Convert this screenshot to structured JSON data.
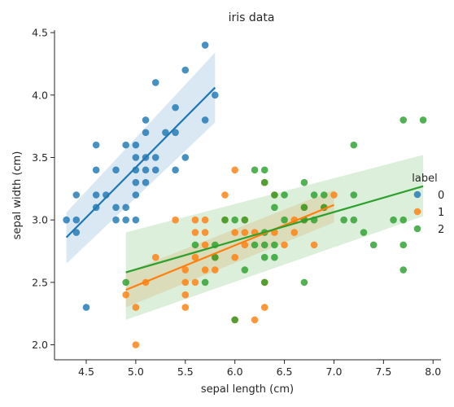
{
  "chart_data": {
    "type": "scatter",
    "title": "iris data",
    "xlabel": "sepal length (cm)",
    "ylabel": "sepal width (cm)",
    "xlim": [
      4.18,
      8.08
    ],
    "ylim": [
      1.88,
      4.52
    ],
    "xticks": [
      4.5,
      5.0,
      5.5,
      6.0,
      6.5,
      7.0,
      7.5,
      8.0
    ],
    "yticks": [
      2.0,
      2.5,
      3.0,
      3.5,
      4.0,
      4.5
    ],
    "xtick_labels": [
      "4.5",
      "5.0",
      "5.5",
      "6.0",
      "6.5",
      "7.0",
      "7.5",
      "8.0"
    ],
    "ytick_labels": [
      "2.0",
      "2.5",
      "3.0",
      "3.5",
      "4.0",
      "4.5"
    ],
    "grid": false,
    "legend": {
      "title": "label",
      "placement": "right"
    },
    "series": [
      {
        "name": "0",
        "color": "#1f77b4",
        "points": [
          [
            4.3,
            3.0
          ],
          [
            4.4,
            2.9
          ],
          [
            4.4,
            3.0
          ],
          [
            4.4,
            3.2
          ],
          [
            4.5,
            2.3
          ],
          [
            4.6,
            3.1
          ],
          [
            4.6,
            3.4
          ],
          [
            4.6,
            3.6
          ],
          [
            4.6,
            3.2
          ],
          [
            4.7,
            3.2
          ],
          [
            4.8,
            3.4
          ],
          [
            4.8,
            3.0
          ],
          [
            4.8,
            3.1
          ],
          [
            4.9,
            3.0
          ],
          [
            4.9,
            3.1
          ],
          [
            4.9,
            3.6
          ],
          [
            5.0,
            3.6
          ],
          [
            5.0,
            3.4
          ],
          [
            5.0,
            3.0
          ],
          [
            5.0,
            3.3
          ],
          [
            5.0,
            3.5
          ],
          [
            5.0,
            3.2
          ],
          [
            5.1,
            3.5
          ],
          [
            5.1,
            3.8
          ],
          [
            5.1,
            3.7
          ],
          [
            5.1,
            3.3
          ],
          [
            5.1,
            3.4
          ],
          [
            5.2,
            3.5
          ],
          [
            5.2,
            3.4
          ],
          [
            5.2,
            4.1
          ],
          [
            5.3,
            3.7
          ],
          [
            5.4,
            3.9
          ],
          [
            5.4,
            3.7
          ],
          [
            5.4,
            3.4
          ],
          [
            5.5,
            4.2
          ],
          [
            5.5,
            3.5
          ],
          [
            5.7,
            4.4
          ],
          [
            5.7,
            3.8
          ],
          [
            5.8,
            4.0
          ]
        ],
        "fit": {
          "x_range": [
            4.3,
            5.8
          ],
          "y_values": [
            2.86,
            4.06
          ],
          "ci_lower": [
            2.65,
            3.78
          ],
          "ci_upper": [
            3.06,
            4.34
          ]
        }
      },
      {
        "name": "1",
        "color": "#ff7f0e",
        "points": [
          [
            4.9,
            2.4
          ],
          [
            5.0,
            2.0
          ],
          [
            5.0,
            2.3
          ],
          [
            5.1,
            2.5
          ],
          [
            5.2,
            2.7
          ],
          [
            5.4,
            3.0
          ],
          [
            5.5,
            2.3
          ],
          [
            5.5,
            2.4
          ],
          [
            5.5,
            2.5
          ],
          [
            5.5,
            2.6
          ],
          [
            5.6,
            2.9
          ],
          [
            5.6,
            3.0
          ],
          [
            5.6,
            2.5
          ],
          [
            5.6,
            2.7
          ],
          [
            5.7,
            2.8
          ],
          [
            5.7,
            3.0
          ],
          [
            5.7,
            2.9
          ],
          [
            5.7,
            2.6
          ],
          [
            5.8,
            2.7
          ],
          [
            5.8,
            2.6
          ],
          [
            5.9,
            3.0
          ],
          [
            5.9,
            3.2
          ],
          [
            6.0,
            2.2
          ],
          [
            6.0,
            2.9
          ],
          [
            6.0,
            2.7
          ],
          [
            6.0,
            3.4
          ],
          [
            6.1,
            2.9
          ],
          [
            6.1,
            2.8
          ],
          [
            6.1,
            3.0
          ],
          [
            6.2,
            2.2
          ],
          [
            6.2,
            2.9
          ],
          [
            6.3,
            3.3
          ],
          [
            6.3,
            2.5
          ],
          [
            6.3,
            2.3
          ],
          [
            6.4,
            3.2
          ],
          [
            6.4,
            2.9
          ],
          [
            6.5,
            2.8
          ],
          [
            6.6,
            2.9
          ],
          [
            6.6,
            3.0
          ],
          [
            6.7,
            3.1
          ],
          [
            6.7,
            3.0
          ],
          [
            6.8,
            2.8
          ],
          [
            6.9,
            3.1
          ],
          [
            7.0,
            3.2
          ]
        ],
        "fit": {
          "x_range": [
            4.9,
            7.0
          ],
          "y_values": [
            2.44,
            3.12
          ],
          "ci_lower": [
            2.3,
            2.98
          ],
          "ci_upper": [
            2.58,
            3.24
          ]
        }
      },
      {
        "name": "2",
        "color": "#2ca02c",
        "points": [
          [
            4.9,
            2.5
          ],
          [
            5.6,
            2.8
          ],
          [
            5.7,
            2.5
          ],
          [
            5.8,
            2.7
          ],
          [
            5.8,
            2.8
          ],
          [
            5.9,
            3.0
          ],
          [
            6.0,
            2.2
          ],
          [
            6.0,
            3.0
          ],
          [
            6.1,
            2.6
          ],
          [
            6.1,
            3.0
          ],
          [
            6.2,
            2.8
          ],
          [
            6.2,
            3.4
          ],
          [
            6.3,
            3.3
          ],
          [
            6.3,
            2.7
          ],
          [
            6.3,
            2.9
          ],
          [
            6.3,
            2.5
          ],
          [
            6.3,
            2.8
          ],
          [
            6.3,
            3.4
          ],
          [
            6.4,
            2.7
          ],
          [
            6.4,
            3.2
          ],
          [
            6.4,
            2.8
          ],
          [
            6.4,
            3.1
          ],
          [
            6.5,
            3.0
          ],
          [
            6.5,
            3.2
          ],
          [
            6.7,
            2.5
          ],
          [
            6.7,
            3.3
          ],
          [
            6.7,
            3.0
          ],
          [
            6.7,
            3.1
          ],
          [
            6.8,
            3.0
          ],
          [
            6.8,
            3.2
          ],
          [
            6.9,
            3.2
          ],
          [
            6.9,
            3.1
          ],
          [
            7.1,
            3.0
          ],
          [
            7.2,
            3.6
          ],
          [
            7.2,
            3.2
          ],
          [
            7.2,
            3.0
          ],
          [
            7.3,
            2.9
          ],
          [
            7.4,
            2.8
          ],
          [
            7.6,
            3.0
          ],
          [
            7.7,
            3.8
          ],
          [
            7.7,
            2.6
          ],
          [
            7.7,
            2.8
          ],
          [
            7.7,
            3.0
          ],
          [
            7.9,
            3.8
          ]
        ],
        "fit": {
          "x_range": [
            4.9,
            7.9
          ],
          "y_values": [
            2.58,
            3.27
          ],
          "ci_lower": [
            2.2,
            3.03
          ],
          "ci_upper": [
            2.9,
            3.52
          ]
        }
      }
    ]
  }
}
